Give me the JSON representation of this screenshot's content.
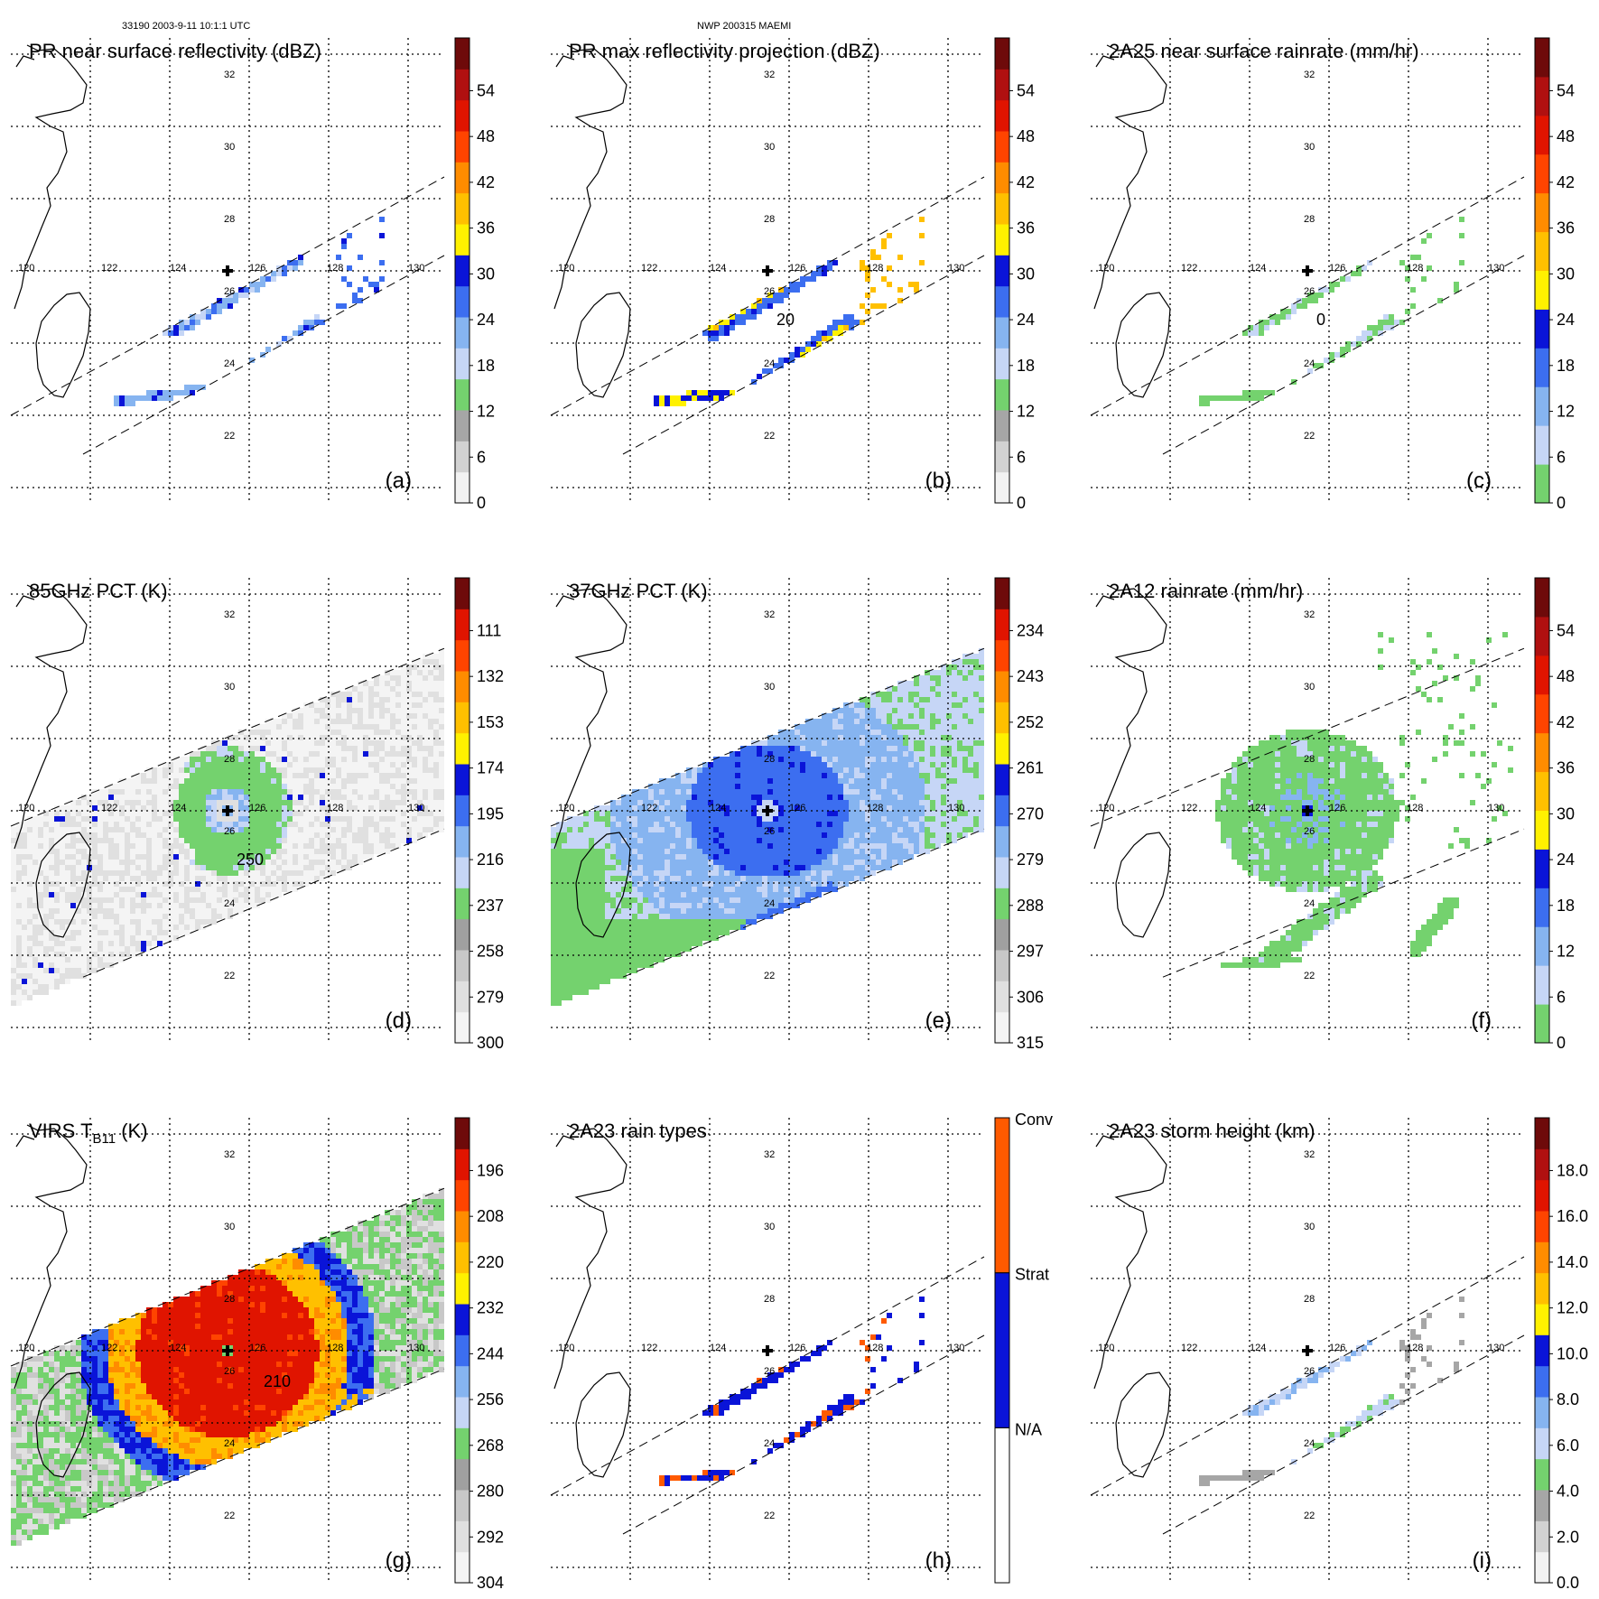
{
  "figure": {
    "orbit_header": "33190 2003-9-11 10:1:1 UTC",
    "storm_header": "NWP 200315 MAEMI",
    "lon_labels": [
      "120",
      "122",
      "124",
      "126",
      "128",
      "130"
    ],
    "lat_labels": [
      "32",
      "30",
      "28",
      "26",
      "24",
      "22"
    ],
    "storm_center_marker": "cross-icon"
  },
  "chart_data": [
    {
      "id": "a",
      "type": "heatmap",
      "title": "PR near surface reflectivity (dBZ)",
      "panel_label": "(a)",
      "colorbar_ticks": [
        "0",
        "6",
        "12",
        "18",
        "24",
        "30",
        "36",
        "42",
        "48",
        "54"
      ],
      "colors": [
        "#f2f2f2",
        "#d2d2d2",
        "#a6a6a6",
        "#74d26e",
        "#c6d6f6",
        "#86b4f0",
        "#3c6ef0",
        "#0a14d8",
        "#fff100",
        "#ffc000",
        "#ff8c00",
        "#ff4400",
        "#e01400",
        "#b01010",
        "#6e0a0a"
      ],
      "field": "pr_sparse",
      "contours": []
    },
    {
      "id": "b",
      "type": "heatmap",
      "title": "PR max reflectivity projection (dBZ)",
      "panel_label": "(b)",
      "colorbar_ticks": [
        "0",
        "6",
        "12",
        "18",
        "24",
        "30",
        "36",
        "42",
        "48",
        "54"
      ],
      "colors": [
        "#f2f2f2",
        "#d2d2d2",
        "#a6a6a6",
        "#74d26e",
        "#c6d6f6",
        "#86b4f0",
        "#3c6ef0",
        "#0a14d8",
        "#fff100",
        "#ffc000",
        "#ff8c00",
        "#ff4400",
        "#e01400",
        "#b01010",
        "#6e0a0a"
      ],
      "field": "pr_max",
      "contours": [
        "20"
      ]
    },
    {
      "id": "c",
      "type": "heatmap",
      "title": "2A25 near surface rainrate (mm/hr)",
      "panel_label": "(c)",
      "colorbar_ticks": [
        "0",
        "6",
        "12",
        "18",
        "24",
        "30",
        "36",
        "42",
        "48",
        "54"
      ],
      "colors": [
        "#74d26e",
        "#c6d6f6",
        "#86b4f0",
        "#3c6ef0",
        "#0a14d8",
        "#fff100",
        "#ffc000",
        "#ff8c00",
        "#ff4400",
        "#e01400",
        "#b01010",
        "#6e0a0a"
      ],
      "field": "pr_rain",
      "contours": [
        "0"
      ]
    },
    {
      "id": "d",
      "type": "heatmap",
      "title": "85GHz PCT (K)",
      "panel_label": "(d)",
      "colorbar_ticks": [
        "300",
        "279",
        "258",
        "237",
        "216",
        "195",
        "174",
        "153",
        "132",
        "111"
      ],
      "colors": [
        "#f4f4f4",
        "#e0e0e0",
        "#c8c8c8",
        "#a0a0a0",
        "#74d26e",
        "#c6d6f6",
        "#86b4f0",
        "#3c6ef0",
        "#0a14d8",
        "#fff100",
        "#ffc000",
        "#ff8c00",
        "#ff4400",
        "#e01400",
        "#6e0a0a"
      ],
      "field": "pct85",
      "contours": [
        "250"
      ]
    },
    {
      "id": "e",
      "type": "heatmap",
      "title": "37GHz PCT (K)",
      "panel_label": "(e)",
      "colorbar_ticks": [
        "315",
        "306",
        "297",
        "288",
        "279",
        "270",
        "261",
        "252",
        "243",
        "234"
      ],
      "colors": [
        "#f4f4f4",
        "#e0e0e0",
        "#c8c8c8",
        "#a0a0a0",
        "#74d26e",
        "#c6d6f6",
        "#86b4f0",
        "#3c6ef0",
        "#0a14d8",
        "#fff100",
        "#ffc000",
        "#ff8c00",
        "#ff4400",
        "#e01400",
        "#6e0a0a"
      ],
      "field": "pct37",
      "contours": []
    },
    {
      "id": "f",
      "type": "heatmap",
      "title": "2A12 rainrate (mm/hr)",
      "panel_label": "(f)",
      "colorbar_ticks": [
        "0",
        "6",
        "12",
        "18",
        "24",
        "30",
        "36",
        "42",
        "48",
        "54"
      ],
      "colors": [
        "#74d26e",
        "#c6d6f6",
        "#86b4f0",
        "#3c6ef0",
        "#0a14d8",
        "#fff100",
        "#ffc000",
        "#ff8c00",
        "#ff4400",
        "#e01400",
        "#b01010",
        "#6e0a0a"
      ],
      "field": "tmi_rain",
      "contours": []
    },
    {
      "id": "g",
      "type": "heatmap",
      "title_main": "VIRS T",
      "title_sub": "B11",
      "title_unit": " (K)",
      "panel_label": "(g)",
      "colorbar_ticks": [
        "304",
        "292",
        "280",
        "268",
        "256",
        "244",
        "232",
        "220",
        "208",
        "196"
      ],
      "colors": [
        "#f4f4f4",
        "#e0e0e0",
        "#c8c8c8",
        "#a0a0a0",
        "#74d26e",
        "#c6d6f6",
        "#86b4f0",
        "#3c6ef0",
        "#0a14d8",
        "#fff100",
        "#ffc000",
        "#ff8c00",
        "#ff4400",
        "#e01400",
        "#6e0a0a"
      ],
      "field": "virs",
      "contours": [
        "210"
      ]
    },
    {
      "id": "h",
      "type": "heatmap",
      "title": "2A23 rain types",
      "panel_label": "(h)",
      "categories": [
        "N/A",
        "Strat",
        "Conv"
      ],
      "colors": [
        "#ffffff",
        "#0a14d8",
        "#ff5a00"
      ],
      "field": "raintype",
      "contours": []
    },
    {
      "id": "i",
      "type": "heatmap",
      "title": "2A23 storm height (km)",
      "panel_label": "(i)",
      "colorbar_ticks": [
        "0.0",
        "2.0",
        "4.0",
        "6.0",
        "8.0",
        "10.0",
        "12.0",
        "14.0",
        "16.0",
        "18.0"
      ],
      "colors": [
        "#f2f2f2",
        "#d2d2d2",
        "#a6a6a6",
        "#74d26e",
        "#c6d6f6",
        "#86b4f0",
        "#3c6ef0",
        "#0a14d8",
        "#fff100",
        "#ffc000",
        "#ff8c00",
        "#ff4400",
        "#e01400",
        "#b01010",
        "#6e0a0a"
      ],
      "field": "stormh",
      "contours": []
    }
  ]
}
